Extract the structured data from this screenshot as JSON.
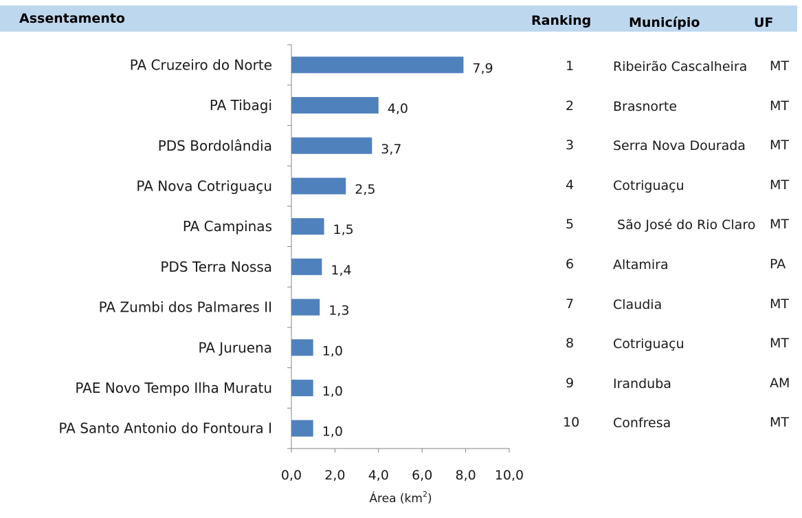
{
  "header": {
    "assentamento": "Assentamento",
    "ranking": "Ranking",
    "municipio": "Município",
    "uf": "UF"
  },
  "chart_data": {
    "type": "bar",
    "orientation": "horizontal",
    "categories": [
      "PA Cruzeiro do Norte",
      "PA Tibagi",
      "PDS Bordolândia",
      "PA Nova Cotriguaçu",
      "PA Campinas",
      "PDS Terra Nossa",
      "PA Zumbi dos Palmares II",
      "PA Juruena",
      "PAE Novo Tempo Ilha Muratu",
      "PA Santo Antonio do Fontoura I"
    ],
    "values": [
      7.9,
      4.0,
      3.7,
      2.5,
      1.5,
      1.4,
      1.3,
      1.0,
      1.0,
      1.0
    ],
    "value_labels": [
      "7,9",
      "4,0",
      "3,7",
      "2,5",
      "1,5",
      "1,4",
      "1,3",
      "1,0",
      "1,0",
      "1,0"
    ],
    "xlabel": "Área (km",
    "xlabel_sup": "2",
    "xlabel_end": ")",
    "xlim": [
      0,
      10
    ],
    "xticks": [
      "0,0",
      "2,0",
      "4,0",
      "6,0",
      "8,0",
      "10,0"
    ],
    "bar_color": "#4f81bd",
    "grid": false
  },
  "table": {
    "rows": [
      {
        "ranking": "1",
        "municipio": "Ribeirão Cascalheira",
        "uf": "MT"
      },
      {
        "ranking": "2",
        "municipio": "Brasnorte",
        "uf": "MT"
      },
      {
        "ranking": "3",
        "municipio": "Serra Nova Dourada",
        "uf": "MT"
      },
      {
        "ranking": "4",
        "municipio": "Cotriguaçu",
        "uf": "MT"
      },
      {
        "ranking": "5",
        "municipio": " São José do Rio Claro",
        "uf": "MT"
      },
      {
        "ranking": "6",
        "municipio": "Altamira",
        "uf": "PA"
      },
      {
        "ranking": "7",
        "municipio": "Claudia",
        "uf": "MT"
      },
      {
        "ranking": "8",
        "municipio": "Cotriguaçu",
        "uf": "MT"
      },
      {
        "ranking": "9",
        "municipio": "Iranduba",
        "uf": "AM"
      },
      {
        "ranking": "10",
        "municipio": "Confresa",
        "uf": "MT"
      }
    ]
  }
}
